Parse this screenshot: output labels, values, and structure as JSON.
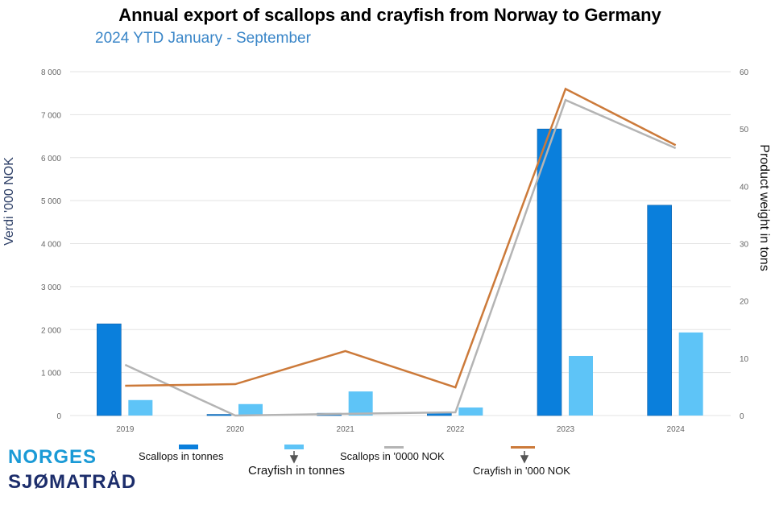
{
  "chart_data": {
    "type": "bar+line",
    "title": "Annual export of scallops and crayfish from Norway to Germany",
    "subtitle": "2024 YTD January - September",
    "categories": [
      "2019",
      "2020",
      "2021",
      "2022",
      "2023",
      "2024"
    ],
    "ylabel_left": "Verdi '000 NOK",
    "ylabel_right": "Product weight in tons",
    "ylim_left": [
      0,
      8000
    ],
    "ylim_right": [
      0,
      60
    ],
    "yticks_left": [
      "0",
      "1 000",
      "2 000",
      "3 000",
      "4 000",
      "5 000",
      "6 000",
      "7 000",
      "8 000"
    ],
    "yticks_right": [
      "0",
      "10",
      "20",
      "30",
      "40",
      "50",
      "60"
    ],
    "grid": true,
    "legend_placement": "bottom",
    "series": [
      {
        "name": "Scallops in tonnes",
        "type": "bar",
        "axis": "right",
        "color": "#0a7fdc",
        "values": [
          16.0,
          0.2,
          0.4,
          0.5,
          50.0,
          36.7
        ]
      },
      {
        "name": "Crayfish in tonnes",
        "type": "bar",
        "axis": "right",
        "color": "#5ec4f7",
        "values": [
          2.7,
          2.0,
          4.2,
          1.4,
          10.4,
          14.5
        ]
      },
      {
        "name": "Scallops in '0000 NOK",
        "type": "line",
        "axis": "left",
        "color": "#b4b4b4",
        "values": [
          1180,
          0,
          40,
          75,
          7340,
          6220
        ]
      },
      {
        "name": "Crayfish in '000 NOK",
        "type": "line",
        "axis": "left",
        "color": "#cc7a3a",
        "values": [
          693,
          730,
          1500,
          655,
          7600,
          6290
        ]
      }
    ]
  },
  "logo": {
    "line1": "NORGES",
    "line2": "SJØMATRÅD",
    "color1": "#1a9ad6",
    "color2": "#1c2d6b"
  }
}
